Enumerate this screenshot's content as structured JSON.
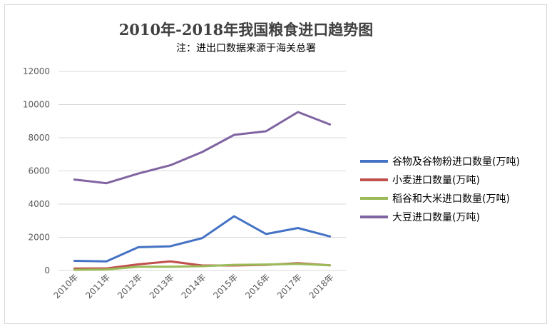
{
  "chart_data": {
    "type": "line",
    "title": "2010年-2018年我国粮食进口趋势图",
    "subtitle": "注：进出口数据来源于海关总署",
    "categories": [
      "2010年",
      "2011年",
      "2012年",
      "2013年",
      "2014年",
      "2015年",
      "2016年",
      "2017年",
      "2018年"
    ],
    "yticks": [
      "0",
      "2000",
      "4000",
      "6000",
      "8000",
      "10000",
      "12000"
    ],
    "ylim": [
      0,
      12000
    ],
    "grid": true,
    "legend_position": "right",
    "series": [
      {
        "name": "谷物及谷物粉进口数量(万吨)",
        "color": "#4472c4",
        "values": [
          580,
          550,
          1400,
          1460,
          1950,
          3270,
          2200,
          2560,
          2050
        ]
      },
      {
        "name": "小麦进口数量(万吨)",
        "color": "#c0504d",
        "values": [
          120,
          125,
          370,
          550,
          300,
          300,
          340,
          440,
          310
        ]
      },
      {
        "name": "稻谷和大米进口数量(万吨)",
        "color": "#9bbb59",
        "values": [
          40,
          60,
          230,
          230,
          260,
          340,
          360,
          400,
          310
        ]
      },
      {
        "name": "大豆进口数量(万吨)",
        "color": "#8064a2",
        "values": [
          5480,
          5260,
          5840,
          6340,
          7140,
          8170,
          8390,
          9550,
          8800
        ]
      }
    ]
  }
}
